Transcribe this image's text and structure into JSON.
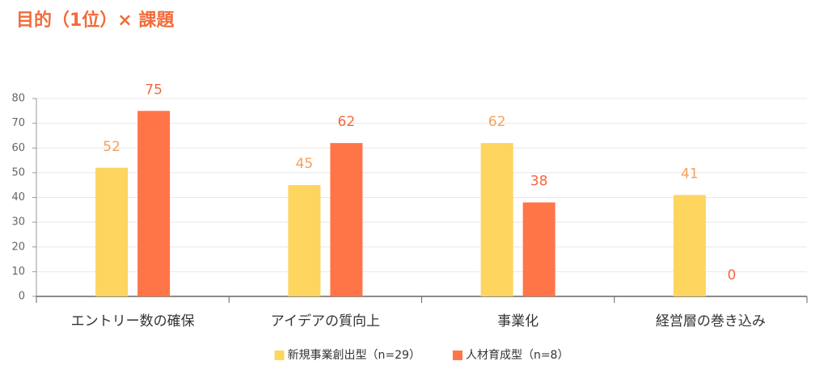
{
  "chart_data": {
    "type": "bar",
    "title": "目的（1位）× 課題",
    "categories": [
      "エントリー数の確保",
      "アイデアの質向上",
      "事業化",
      "経営層の巻き込み"
    ],
    "series": [
      {
        "name": "新規事業創出型（n=29）",
        "color": "#fdd55f",
        "label_color": "#f7a05a",
        "values": [
          52,
          45,
          62,
          41
        ]
      },
      {
        "name": "人材育成型（n=8）",
        "color": "#ff7548",
        "label_color": "#f5673f",
        "values": [
          75,
          62,
          38,
          0
        ]
      }
    ],
    "ylim": [
      0,
      80
    ],
    "yticks": [
      0,
      10,
      20,
      30,
      40,
      50,
      60,
      70,
      80
    ],
    "grid": true,
    "legend": "bottom"
  }
}
